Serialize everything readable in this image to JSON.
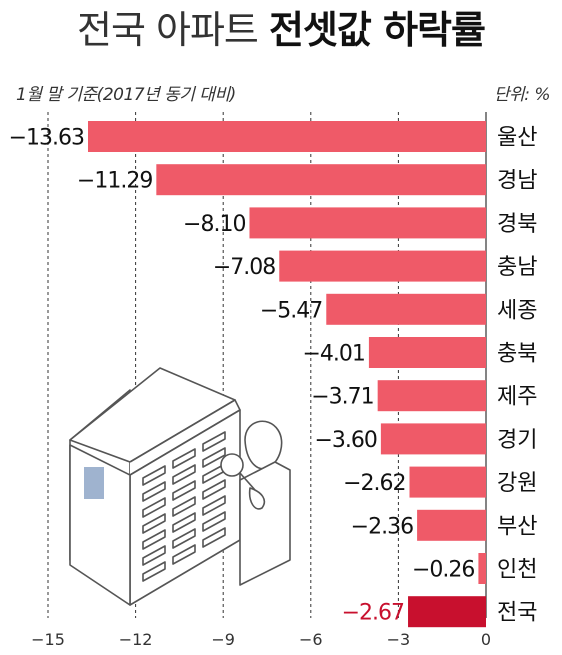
{
  "header": {
    "title_light": "전국 아파트",
    "title_bold": "전셋값 하락률",
    "subtitle": "1월 말 기준(2017년 동기 대비)",
    "unit": "단위: %"
  },
  "colors": {
    "bar": "#ef5a68",
    "highlight": "#c8102e"
  },
  "chart_data": {
    "type": "bar",
    "orientation": "horizontal",
    "categories": [
      "울산",
      "경남",
      "경북",
      "충남",
      "세종",
      "충북",
      "제주",
      "경기",
      "강원",
      "부산",
      "인천",
      "전국"
    ],
    "values": [
      -13.63,
      -11.29,
      -8.1,
      -7.08,
      -5.47,
      -4.01,
      -3.71,
      -3.6,
      -2.62,
      -2.36,
      -0.26,
      -2.67
    ],
    "value_labels": [
      "−13.63",
      "−11.29",
      "−8.10",
      "−7.08",
      "−5.47",
      "−4.01",
      "−3.71",
      "−3.60",
      "−2.62",
      "−2.36",
      "−0.26",
      "−2.67"
    ],
    "highlight_category": "전국",
    "xlim": [
      -15,
      0
    ],
    "xticks": [
      -15,
      -12,
      -9,
      -6,
      -3,
      0
    ],
    "xtick_labels": [
      "−15",
      "−12",
      "−9",
      "−6",
      "−3",
      "0"
    ],
    "grid": true,
    "title": "전국 아파트 전셋값 하락률",
    "xlabel": "",
    "ylabel": ""
  },
  "illustration": {
    "name": "apartment-building-with-magnifier-person"
  }
}
